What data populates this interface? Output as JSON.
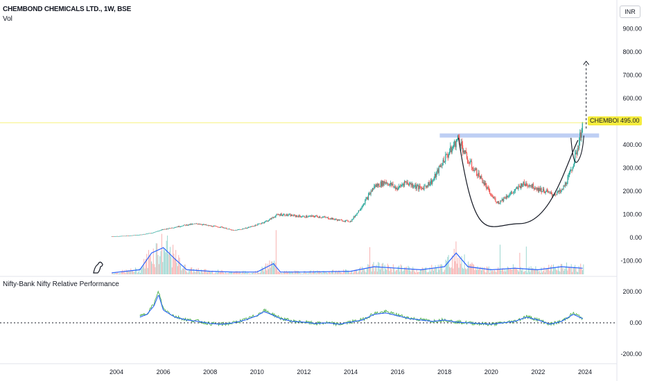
{
  "header": {
    "title": "CHEMBOND CHEMICALS LTD., 1W, BSE",
    "volume_label": "Vol",
    "indicator_title": "Nifty-Bank Nifty Relative Performance",
    "currency_button": "INR"
  },
  "price_label": {
    "ticker": "CHEMBOND",
    "value": "495.00"
  },
  "colors": {
    "up": "#26a69a",
    "down": "#ef5350",
    "volume_ma": "#2962ff",
    "resistance_band": "#b3c7f2",
    "current_price_line": "#f5ec3d",
    "indicator_fast": "#4caf50",
    "indicator_slow": "#2962ff"
  },
  "chart_data": {
    "type": "line",
    "main_axis": {
      "ticks": [
        900,
        800,
        700,
        600,
        500,
        400,
        300,
        200,
        100,
        0,
        -100
      ],
      "tick_labels": [
        "900.00",
        "800.00",
        "700.00",
        "600.00",
        "500.00",
        "400.00",
        "300.00",
        "200.00",
        "100.00",
        "0.00",
        "-100.00"
      ]
    },
    "indicator_axis": {
      "ticks": [
        200,
        0,
        -200
      ],
      "tick_labels": [
        "200.00",
        "0.00",
        "-200.00"
      ]
    },
    "x_axis": {
      "ticks": [
        2004,
        2006,
        2008,
        2010,
        2012,
        2014,
        2016,
        2018,
        2020,
        2022,
        2024
      ],
      "tick_labels": [
        "2004",
        "2006",
        "2008",
        "2010",
        "2012",
        "2014",
        "2016",
        "2018",
        "2020",
        "2022",
        "2024"
      ]
    },
    "price_series": {
      "x": [
        2003.8,
        2004.5,
        2005.0,
        2005.5,
        2006.0,
        2006.5,
        2007.0,
        2007.5,
        2008.0,
        2008.5,
        2009.0,
        2009.5,
        2010.0,
        2010.5,
        2010.8,
        2011.0,
        2011.5,
        2012.0,
        2012.5,
        2013.0,
        2013.5,
        2014.0,
        2014.3,
        2014.7,
        2015.0,
        2015.5,
        2016.0,
        2016.3,
        2016.7,
        2017.0,
        2017.5,
        2018.0,
        2018.3,
        2018.6,
        2019.0,
        2019.3,
        2019.6,
        2020.0,
        2020.3,
        2020.6,
        2021.0,
        2021.3,
        2021.6,
        2022.0,
        2022.3,
        2022.6,
        2023.0,
        2023.3,
        2023.6,
        2023.8,
        2023.9
      ],
      "values": [
        5,
        8,
        12,
        20,
        35,
        45,
        55,
        60,
        50,
        45,
        30,
        40,
        55,
        75,
        95,
        100,
        95,
        90,
        92,
        85,
        75,
        70,
        110,
        170,
        220,
        240,
        210,
        240,
        225,
        210,
        245,
        340,
        380,
        430,
        330,
        290,
        250,
        180,
        150,
        175,
        200,
        230,
        230,
        210,
        200,
        185,
        200,
        260,
        350,
        440,
        495
      ]
    },
    "relative_performance": {
      "x": [
        2005.0,
        2005.3,
        2005.6,
        2005.8,
        2006.0,
        2006.5,
        2007.0,
        2007.5,
        2008.0,
        2008.5,
        2009.0,
        2009.5,
        2010.0,
        2010.3,
        2010.6,
        2011.0,
        2011.5,
        2012.0,
        2012.5,
        2013.0,
        2013.5,
        2014.0,
        2014.5,
        2015.0,
        2015.5,
        2016.0,
        2016.5,
        2017.0,
        2017.5,
        2018.0,
        2018.5,
        2019.0,
        2019.5,
        2020.0,
        2020.5,
        2021.0,
        2021.5,
        2022.0,
        2022.5,
        2023.0,
        2023.5,
        2023.9
      ],
      "values": [
        40,
        60,
        120,
        200,
        90,
        40,
        20,
        10,
        -5,
        -10,
        0,
        20,
        50,
        80,
        60,
        30,
        10,
        5,
        -5,
        0,
        -10,
        5,
        20,
        60,
        70,
        50,
        30,
        20,
        10,
        20,
        5,
        0,
        -5,
        -10,
        0,
        10,
        40,
        20,
        -10,
        10,
        60,
        30
      ]
    },
    "volume_ma": {
      "x": [
        2003.8,
        2005.0,
        2005.5,
        2006.0,
        2006.5,
        2007.0,
        2008.0,
        2009.0,
        2010.0,
        2010.7,
        2011.0,
        2012.0,
        2014.0,
        2015.0,
        2016.0,
        2017.0,
        2018.0,
        2018.5,
        2019.0,
        2020.0,
        2021.0,
        2022.0,
        2023.0,
        2023.9
      ],
      "values": [
        2,
        6,
        28,
        35,
        20,
        6,
        4,
        3,
        3,
        14,
        3,
        3,
        4,
        10,
        8,
        6,
        10,
        28,
        10,
        6,
        8,
        6,
        10,
        8
      ]
    },
    "annotations": {
      "resistance_level": 440,
      "current_price": 495,
      "projection_target": 760,
      "cup_bottom": 60
    }
  }
}
